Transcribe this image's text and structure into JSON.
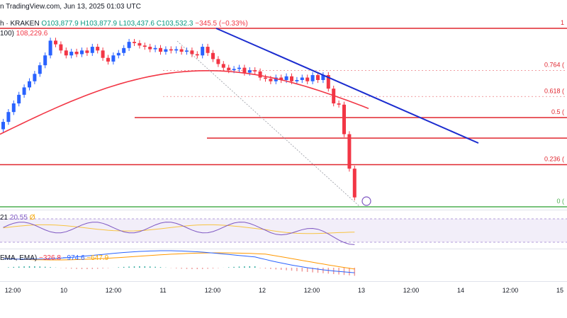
{
  "header": {
    "source_text": "n TradingView.com, Jun 13, 2025 01:03 UTC",
    "symbol_suffix": "h · KRAKEN",
    "open": "O103,877.9",
    "high": "H103,877.9",
    "low": "L103,437.6",
    "close": "C103,532.3",
    "change": "−345.5 (−0.33%)",
    "ma_prefix": "100)",
    "ma_value": "108,229.6"
  },
  "rsi": {
    "label_prefix": "21",
    "value": "20.55",
    "label_suffix": "Ø"
  },
  "macd": {
    "label": "EMA, EMA)",
    "hist": "−326.8",
    "macd": "−974.6",
    "signal": "−647.9"
  },
  "fib_levels": [
    {
      "label": "1",
      "level": 1
    },
    {
      "label": "0.764 (",
      "level": 0.764
    },
    {
      "label": "0.618 (",
      "level": 0.618
    },
    {
      "label": "0.5 (",
      "level": 0.5
    },
    {
      "label": "0.236 (",
      "level": 0.236
    },
    {
      "label": "0 (",
      "level": 0
    }
  ],
  "colors": {
    "up": "#2962ff",
    "down": "#f23645",
    "ma": "#f23645",
    "trend": "#1b2ccf",
    "rsi_line": "#7e57c2",
    "rsi_ma": "#f7c341",
    "macd_line": "#2962ff",
    "signal_line": "#ff9800",
    "fib0": "#4caf50",
    "fib_other": "#e0262f"
  },
  "chart_data": {
    "type": "candlestick",
    "x_ticks": [
      "12:00",
      "10",
      "12:00",
      "11",
      "12:00",
      "12",
      "12:00",
      "13",
      "12:00",
      "14",
      "12:00",
      "15"
    ],
    "fib": {
      "0": 103150,
      "1": 110400
    },
    "candles_close": [
      106600,
      107000,
      107350,
      107700,
      108000,
      108250,
      108550,
      108900,
      109300,
      109900,
      109750,
      109500,
      109300,
      109450,
      109350,
      109500,
      109400,
      109650,
      109500,
      109200,
      109050,
      109300,
      109400,
      109600,
      109850,
      109800,
      109700,
      109650,
      109550,
      109600,
      109450,
      109550,
      109500,
      109550,
      109450,
      109500,
      109350,
      109300,
      109650,
      109400,
      109150,
      108950,
      108800,
      108700,
      108750,
      108800,
      108600,
      108700,
      108650,
      108400,
      108350,
      108250,
      108400,
      108300,
      108450,
      108250,
      108300,
      108400,
      108250,
      108500,
      108300,
      108500,
      107950,
      107350,
      107300,
      106100,
      104700,
      103532.3
    ],
    "ma100_label": "108,229.6",
    "rsi_value": 20.55,
    "macd_values": {
      "hist": -326.8,
      "macd": -974.6,
      "signal": -647.9
    }
  }
}
